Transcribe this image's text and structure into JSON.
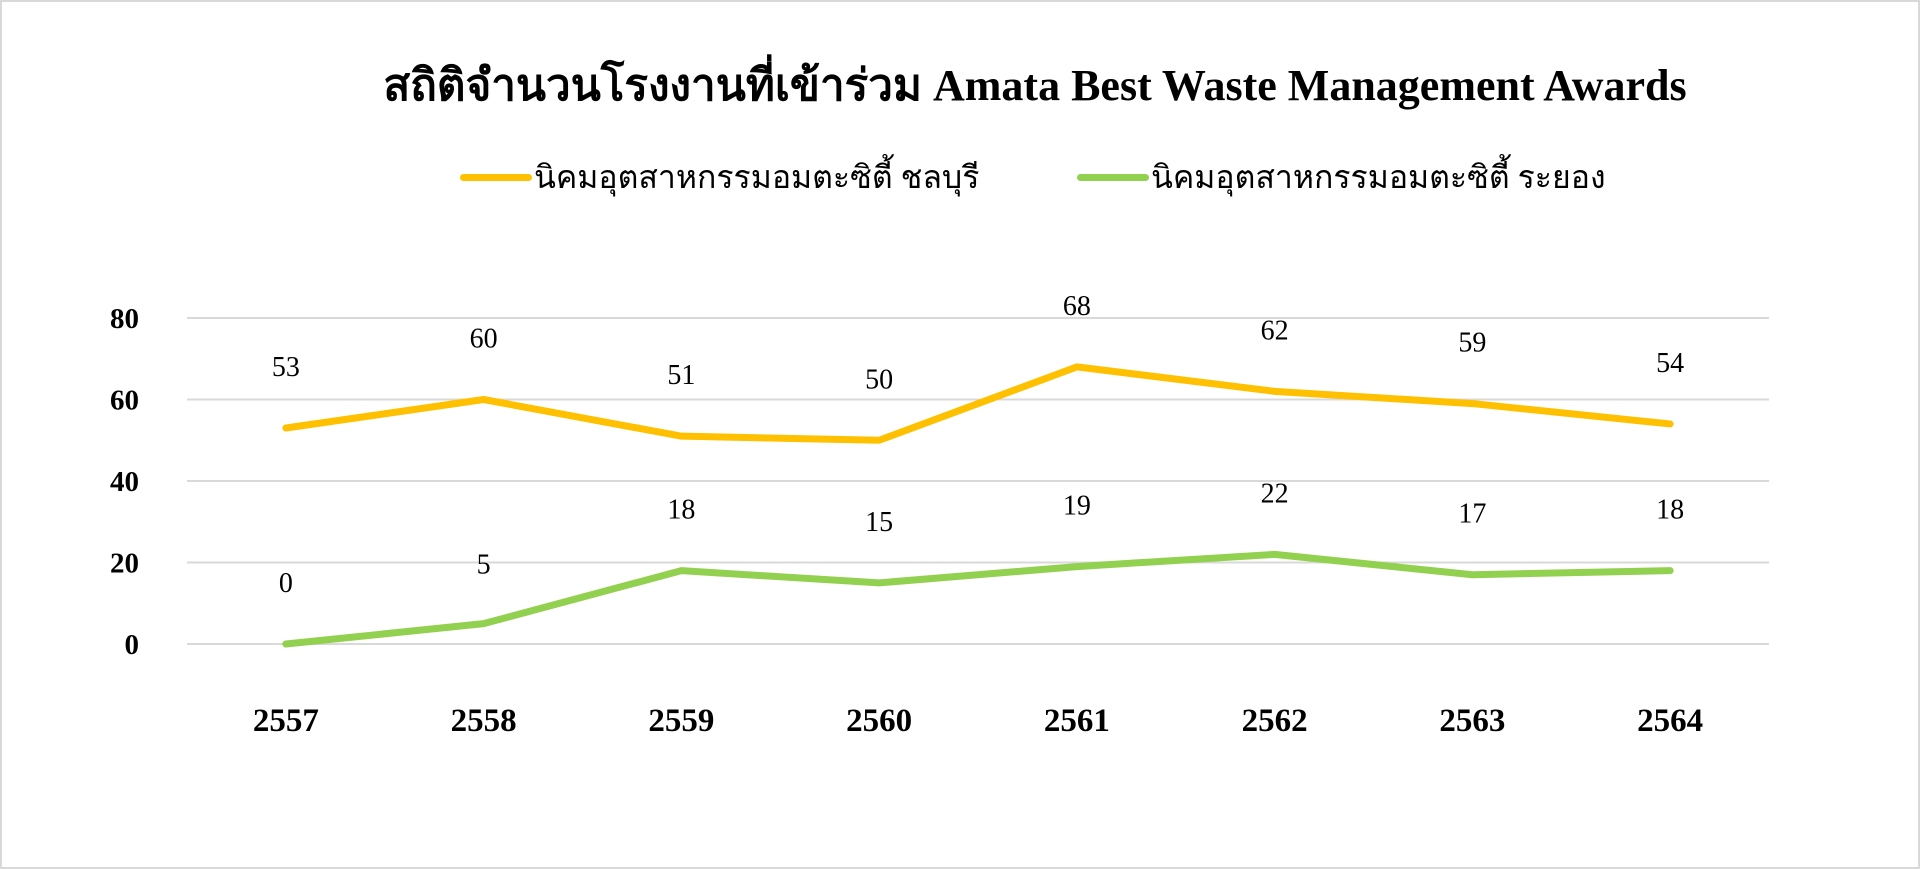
{
  "chart_data": {
    "type": "line",
    "title": "สถิติจำนวนโรงงานที่เข้าร่วม Amata Best Waste Management Awards",
    "categories": [
      "2557",
      "2558",
      "2559",
      "2560",
      "2561",
      "2562",
      "2563",
      "2564"
    ],
    "series": [
      {
        "name": "นิคมอุตสาหกรรมอมตะซิตี้ ชลบุรี",
        "color": "#FFC000",
        "values": [
          53,
          60,
          51,
          50,
          68,
          62,
          59,
          54
        ]
      },
      {
        "name": "นิคมอุตสาหกรรมอมตะซิตี้ ระยอง",
        "color": "#92D050",
        "values": [
          0,
          5,
          18,
          15,
          19,
          22,
          17,
          18
        ]
      }
    ],
    "ylim": [
      0,
      80
    ],
    "yticks": [
      "0",
      "20",
      "40",
      "60",
      "80"
    ],
    "grid": true,
    "legend_position": "top",
    "data_labels": true
  }
}
